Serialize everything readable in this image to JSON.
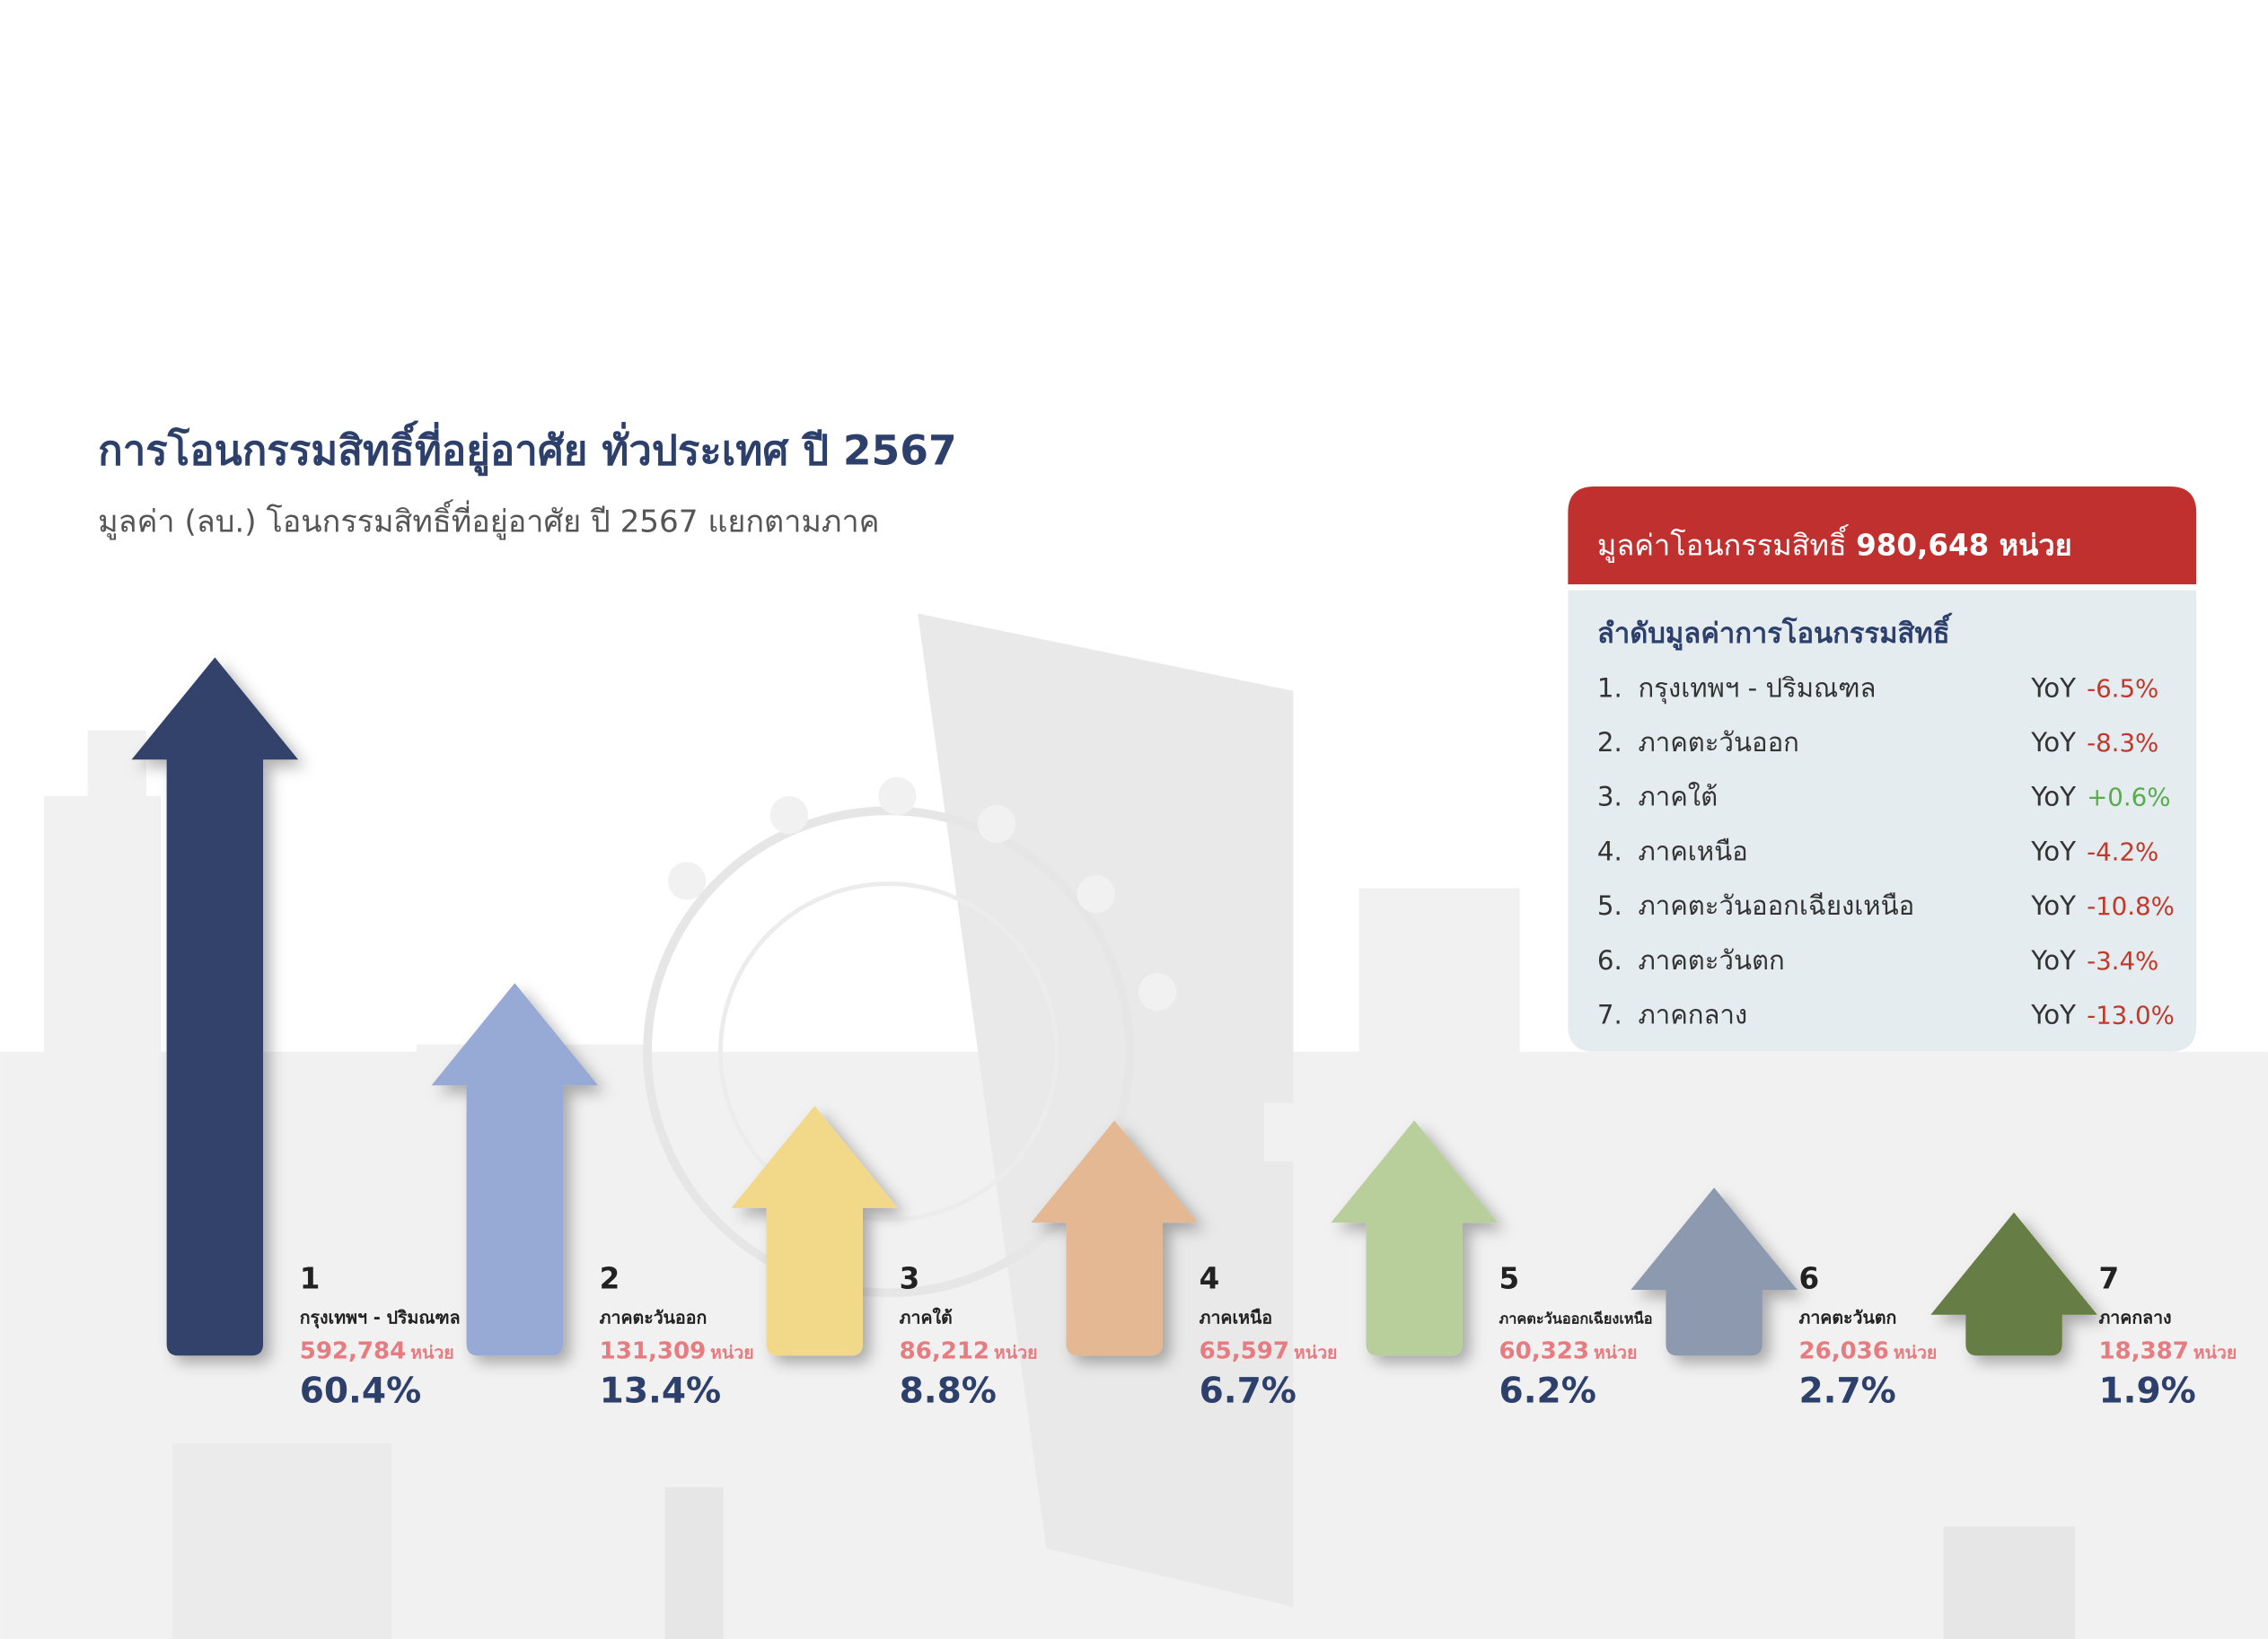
{
  "title": "การโอนกรรมสิทธิ์ที่อยู่อาศัย ทั่วประเทศ ปี 2567",
  "subtitle": "มูลค่า (ลบ.) โอนกรรมสิทธิ์ที่อยู่อาศัย ปี 2567 แยกตามภาค",
  "unit": "หน่วย",
  "regions": [
    {
      "rank": "1",
      "name": "กรุงเทพฯ - ปริมณฑล",
      "units": "592,784",
      "share": "60.4%",
      "color": "#32436b"
    },
    {
      "rank": "2",
      "name": "ภาคตะวันออก",
      "units": "131,309",
      "share": "13.4%",
      "color": "#97aad6"
    },
    {
      "rank": "3",
      "name": "ภาคใต้",
      "units": "86,212",
      "share": "8.8%",
      "color": "#f2d98a"
    },
    {
      "rank": "4",
      "name": "ภาคเหนือ",
      "units": "65,597",
      "share": "6.7%",
      "color": "#e3b892"
    },
    {
      "rank": "5",
      "name": "ภาคตะวันออกเฉียงเหนือ",
      "units": "60,323",
      "share": "6.2%",
      "color": "#b8cf9c"
    },
    {
      "rank": "6",
      "name": "ภาคตะวันตก",
      "units": "26,036",
      "share": "2.7%",
      "color": "#8c99ae"
    },
    {
      "rank": "7",
      "name": "ภาคกลาง",
      "units": "18,387",
      "share": "1.9%",
      "color": "#667e45"
    }
  ],
  "summary": {
    "label": "มูลค่าโอนกรรมสิทธิ์",
    "total": "980,648 หน่วย",
    "heading": "ลำดับมูลค่าการโอนกรรมสิทธิ์",
    "yoy_label": "YoY",
    "rows": [
      {
        "rank": "1.",
        "name": "กรุงเทพฯ - ปริมณฑล",
        "yoy": "-6.5%",
        "color": "#c0392b"
      },
      {
        "rank": "2.",
        "name": "ภาคตะวันออก",
        "yoy": "-8.3%",
        "color": "#c0392b"
      },
      {
        "rank": "3.",
        "name": "ภาคใต้",
        "yoy": "+0.6%",
        "color": "#5aaa4e"
      },
      {
        "rank": "4.",
        "name": "ภาคเหนือ",
        "yoy": "-4.2%",
        "color": "#c0392b"
      },
      {
        "rank": "5.",
        "name": "ภาคตะวันออกเฉียงเหนือ",
        "yoy": "-10.8%",
        "color": "#c0392b"
      },
      {
        "rank": "6.",
        "name": "ภาคตะวันตก",
        "yoy": "-3.4%",
        "color": "#c0392b"
      },
      {
        "rank": "7.",
        "name": "ภาคกลาง",
        "yoy": "-13.0%",
        "color": "#c0392b"
      }
    ]
  }
}
